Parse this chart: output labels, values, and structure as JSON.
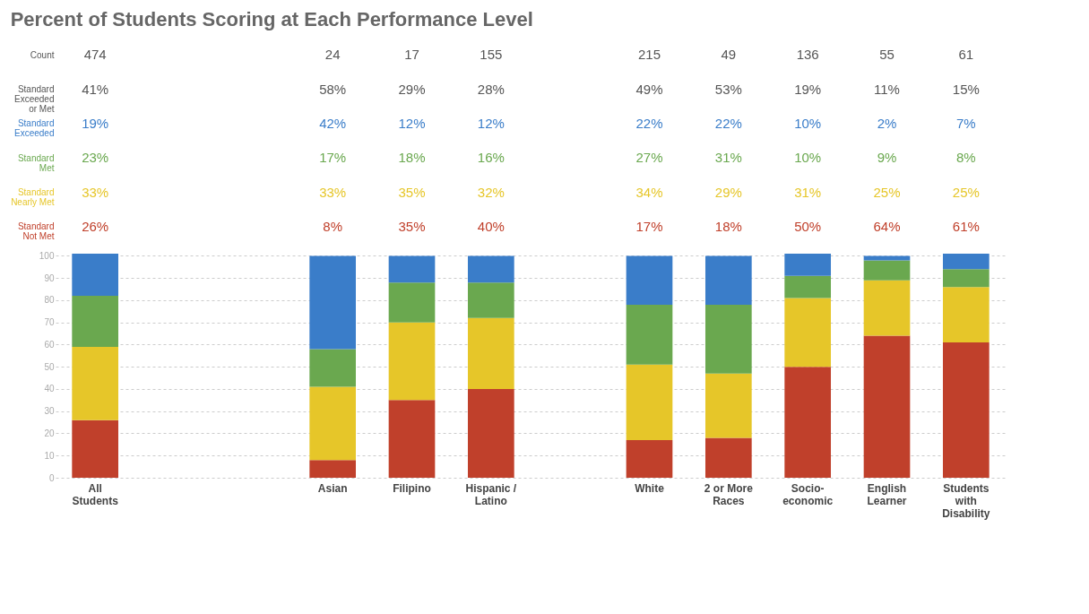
{
  "chart_data": {
    "type": "bar",
    "title": "Percent of Students Scoring at Each Performance Level",
    "categories": [
      "All Students",
      null,
      null,
      "Asian",
      "Filipino",
      "Hispanic / Latino",
      null,
      "White",
      "2 or More Races",
      "Socio-economic",
      "English Learner",
      "Students with Disability"
    ],
    "stacked": true,
    "ylim": [
      0,
      101
    ],
    "yticks": [
      0,
      10,
      20,
      30,
      40,
      50,
      60,
      70,
      80,
      90,
      100
    ],
    "grid": "y",
    "annotations": [
      "Count",
      "474",
      "24",
      "17",
      "155",
      "215",
      "49",
      "136",
      "55",
      "61",
      "Standard Exceeded or Met",
      "41%",
      "58%",
      "29%",
      "28%",
      "49%",
      "53%",
      "19%",
      "11%",
      "15%"
    ],
    "series": [
      {
        "name": "Standard Not Met",
        "color": "#c0402b",
        "values": [
          26,
          null,
          null,
          8,
          35,
          40,
          null,
          17,
          18,
          50,
          64,
          61
        ],
        "value_labels": [
          "26%",
          null,
          null,
          "8%",
          "35%",
          "40%",
          null,
          "17%",
          "18%",
          "50%",
          "64%",
          "61%"
        ]
      },
      {
        "name": "Standard Nearly Met",
        "color": "#e6c629",
        "values": [
          33,
          null,
          null,
          33,
          35,
          32,
          null,
          34,
          29,
          31,
          25,
          25
        ],
        "value_labels": [
          "33%",
          null,
          null,
          "33%",
          "35%",
          "32%",
          null,
          "34%",
          "29%",
          "31%",
          "25%",
          "25%"
        ]
      },
      {
        "name": "Standard Met",
        "color": "#6aa84f",
        "values": [
          23,
          null,
          null,
          17,
          18,
          16,
          null,
          27,
          31,
          10,
          9,
          8
        ],
        "value_labels": [
          "23%",
          null,
          null,
          "17%",
          "18%",
          "16%",
          null,
          "27%",
          "31%",
          "10%",
          "9%",
          "8%"
        ]
      },
      {
        "name": "Standard Exceeded",
        "color": "#3a7dc9",
        "values": [
          19,
          null,
          null,
          42,
          12,
          12,
          null,
          22,
          22,
          10,
          2,
          7
        ],
        "value_labels": [
          "19%",
          null,
          null,
          "42%",
          "12%",
          "12%",
          null,
          "22%",
          "22%",
          "10%",
          "2%",
          "7%"
        ]
      }
    ]
  }
}
